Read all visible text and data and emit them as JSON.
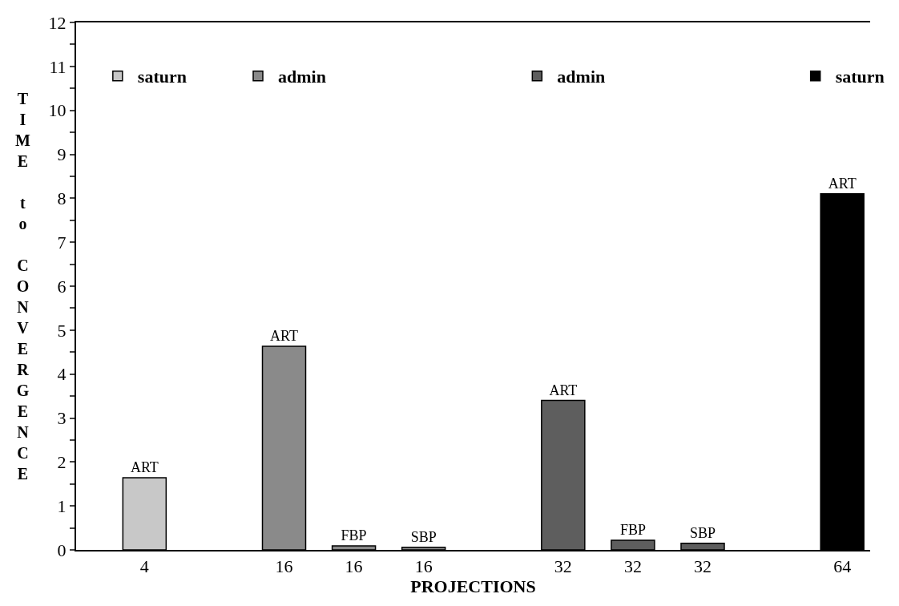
{
  "chart_data": {
    "type": "bar",
    "xlabel": "PROJECTIONS",
    "ylabel": "TIME to CONVERGENCE",
    "categories": [
      "4",
      null,
      "16",
      "16",
      "16",
      null,
      "32",
      "32",
      "32",
      null,
      "64"
    ],
    "series": [
      {
        "name": "saturn",
        "color": "#c8c8c8",
        "values": [
          1.64,
          null,
          null,
          null,
          null,
          null,
          null,
          null,
          null,
          null,
          null
        ],
        "value_labels": [
          "ART",
          null,
          null,
          null,
          null,
          null,
          null,
          null,
          null,
          null,
          null
        ]
      },
      {
        "name": "admin",
        "color": "#8a8a8a",
        "values": [
          null,
          null,
          4.63,
          0.09,
          0.06,
          null,
          null,
          null,
          null,
          null,
          null
        ],
        "value_labels": [
          null,
          null,
          "ART",
          "FBP",
          "SBP",
          null,
          null,
          null,
          null,
          null,
          null
        ]
      },
      {
        "name": "admin",
        "color": "#5e5e5e",
        "values": [
          null,
          null,
          null,
          null,
          null,
          null,
          3.4,
          0.22,
          0.15,
          null,
          null
        ],
        "value_labels": [
          null,
          null,
          null,
          null,
          null,
          null,
          "ART",
          "FBP",
          "SBP",
          null,
          null
        ]
      },
      {
        "name": "saturn",
        "color": "#000000",
        "values": [
          null,
          null,
          null,
          null,
          null,
          null,
          null,
          null,
          null,
          null,
          8.1
        ],
        "value_labels": [
          null,
          null,
          null,
          null,
          null,
          null,
          null,
          null,
          null,
          null,
          "ART"
        ]
      }
    ],
    "ylim": [
      0,
      12
    ],
    "yticks": [
      0,
      {
        "value": 0.5,
        "label": null
      },
      1,
      {
        "value": 1.5,
        "label": null
      },
      2,
      {
        "value": 2.5,
        "label": null
      },
      3,
      {
        "value": 3.5,
        "label": null
      },
      4,
      {
        "value": 4.5,
        "label": null
      },
      5,
      {
        "value": 5.5,
        "label": null
      },
      6,
      {
        "value": 6.5,
        "label": null
      },
      7,
      {
        "value": 7.5,
        "label": null
      },
      8,
      {
        "value": 8.5,
        "label": null
      },
      9,
      {
        "value": 9.5,
        "label": null
      },
      10,
      {
        "value": 10.5,
        "label": null
      },
      11,
      {
        "value": 11.5,
        "label": null
      },
      12
    ],
    "legend": "top"
  }
}
